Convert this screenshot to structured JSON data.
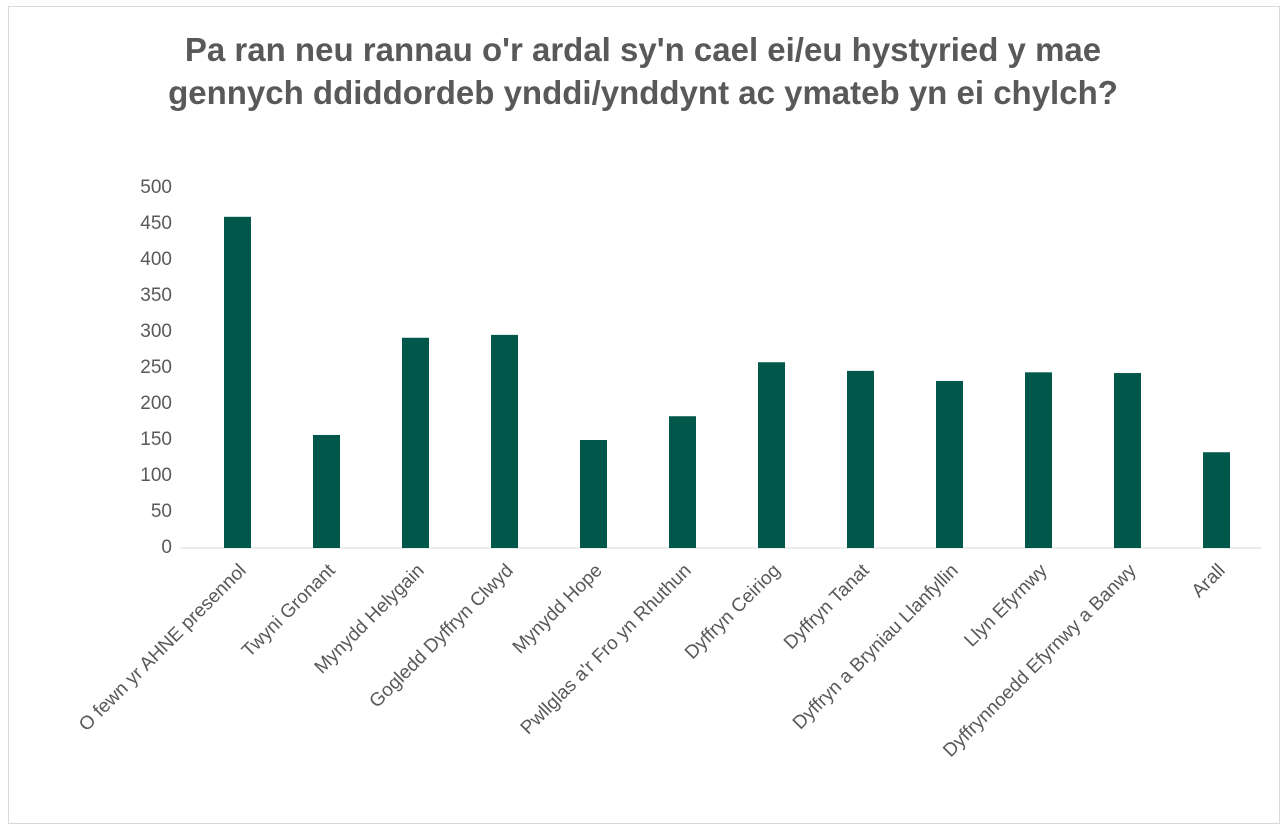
{
  "chart_data": {
    "type": "bar",
    "title": "Pa ran neu rannau o'r ardal sy'n cael ei/eu hystyried y mae gennych ddiddordeb ynddi/ynddynt ac ymateb yn ei chylch?",
    "categories": [
      "O fewn yr AHNE presennol",
      "Twyni Gronant",
      "Mynydd Helygain",
      "Gogledd Dyffryn Clwyd",
      "Mynydd Hope",
      "Pwllglas a'r Fro yn Rhuthun",
      "Dyffryn Ceiriog",
      "Dyffryn Tanat",
      "Dyffryn a Bryniau Llanfyllin",
      "Llyn Efyrnwy",
      "Dyffrynnoedd Efyrnwy a Banwy",
      "Arall"
    ],
    "values": [
      460,
      157,
      292,
      296,
      150,
      183,
      258,
      246,
      232,
      244,
      243,
      133
    ],
    "color": "#00574a",
    "ylim": [
      0,
      500
    ],
    "yticks": [
      0,
      50,
      100,
      150,
      200,
      250,
      300,
      350,
      400,
      450,
      500
    ],
    "grid": false
  }
}
